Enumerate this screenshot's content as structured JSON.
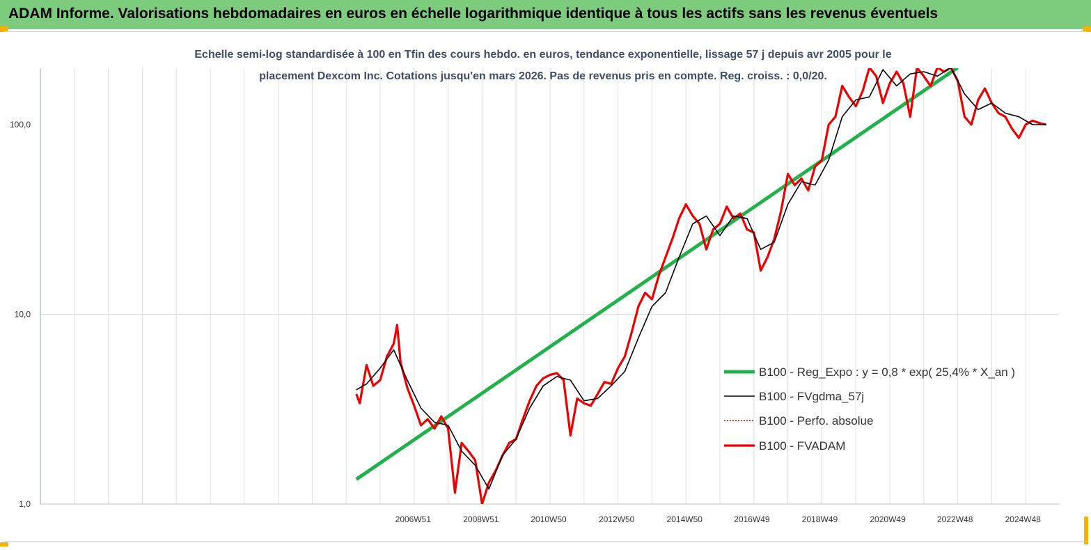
{
  "header": {
    "title": "ADAM Informe. Valorisations hebdomadaires en euros en échelle logarithmique identique à tous les actifs sans les revenus éventuels"
  },
  "colors": {
    "header_bg": "#7dcb7d",
    "accent_corner": "#f2b400",
    "series_regexpo": "#22b14c",
    "series_fvgdma": "#000000",
    "series_perfo": "#cc0000",
    "series_fvadam": "#ee0000"
  },
  "chart_data": {
    "type": "line",
    "title_line1": "Echelle semi-log standardisée à 100 en Tfin des cours hebdo. en euros, tendance exponentielle, lissage 57 j depuis avr 2005 pour le",
    "title_line2": "placement Dexcom Inc. Cotations jusqu'en mars 2026. Pas de revenus pris en compte. Reg. croiss. : 0,0/20.",
    "y_scale": "log",
    "ylim": [
      1,
      200
    ],
    "y_ticks": [
      {
        "value": 1,
        "label": "1,0"
      },
      {
        "value": 10,
        "label": "10,0"
      },
      {
        "value": 100,
        "label": "100,0"
      }
    ],
    "xlim": [
      1996.0,
      2026.0
    ],
    "x_ticks": [
      {
        "value": 2006.97,
        "label": "2006W51"
      },
      {
        "value": 2008.97,
        "label": "2008W51"
      },
      {
        "value": 2010.96,
        "label": "2010W50"
      },
      {
        "value": 2012.96,
        "label": "2012W50"
      },
      {
        "value": 2014.96,
        "label": "2014W50"
      },
      {
        "value": 2016.94,
        "label": "2016W49"
      },
      {
        "value": 2018.94,
        "label": "2018W49"
      },
      {
        "value": 2020.94,
        "label": "2020W49"
      },
      {
        "value": 2022.92,
        "label": "2022W48"
      },
      {
        "value": 2024.92,
        "label": "2024W48"
      }
    ],
    "grid": "vertical",
    "legend_position": "right",
    "series": [
      {
        "name": "B100 - Reg_Expo : y = 0,8 * exp( 25,4% *  X_an )",
        "style": "thick-green",
        "x": [
          2005.3,
          2023.0
        ],
        "y": [
          1.35,
          200
        ]
      },
      {
        "name": "B100 - FVgdma_57j",
        "style": "thin-black",
        "x": [
          2005.3,
          2005.6,
          2006.0,
          2006.4,
          2006.8,
          2007.2,
          2007.6,
          2008.0,
          2008.4,
          2008.8,
          2009.2,
          2009.6,
          2010.0,
          2010.4,
          2010.8,
          2011.2,
          2011.6,
          2012.0,
          2012.4,
          2012.8,
          2013.2,
          2013.6,
          2014.0,
          2014.4,
          2014.8,
          2015.2,
          2015.6,
          2016.0,
          2016.4,
          2016.8,
          2017.2,
          2017.6,
          2018.0,
          2018.4,
          2018.8,
          2019.2,
          2019.6,
          2020.0,
          2020.4,
          2020.8,
          2021.2,
          2021.6,
          2022.0,
          2022.4,
          2022.8,
          2023.2,
          2023.6,
          2024.0,
          2024.4,
          2024.8,
          2025.2,
          2025.6
        ],
        "y": [
          4.0,
          4.3,
          5.2,
          6.5,
          4.5,
          3.2,
          2.7,
          2.6,
          1.9,
          1.6,
          1.2,
          1.8,
          2.2,
          3.2,
          4.2,
          4.7,
          4.5,
          3.5,
          3.6,
          4.2,
          5.0,
          7.5,
          11.0,
          13.0,
          20.0,
          30.0,
          33.0,
          26.0,
          33.0,
          32.0,
          22.0,
          24.0,
          38.0,
          50.0,
          48.0,
          65.0,
          110.0,
          135.0,
          140.0,
          195.0,
          160.0,
          185.0,
          190.0,
          180.0,
          200.0,
          145.0,
          120.0,
          130.0,
          115.0,
          110.0,
          100.0,
          100.0
        ]
      },
      {
        "name": "B100 - Perfo. absolue",
        "style": "dotted-red",
        "x": [],
        "y": []
      },
      {
        "name": "B100 - FVADAM",
        "style": "thick-red",
        "x": [
          2005.3,
          2005.4,
          2005.6,
          2005.8,
          2006.0,
          2006.2,
          2006.4,
          2006.5,
          2006.6,
          2006.8,
          2007.0,
          2007.2,
          2007.4,
          2007.6,
          2007.8,
          2008.0,
          2008.2,
          2008.4,
          2008.6,
          2008.8,
          2009.0,
          2009.2,
          2009.4,
          2009.6,
          2009.8,
          2010.0,
          2010.2,
          2010.4,
          2010.6,
          2010.8,
          2011.0,
          2011.2,
          2011.4,
          2011.6,
          2011.8,
          2012.0,
          2012.2,
          2012.4,
          2012.6,
          2012.8,
          2013.0,
          2013.2,
          2013.4,
          2013.6,
          2013.8,
          2014.0,
          2014.2,
          2014.4,
          2014.6,
          2014.8,
          2015.0,
          2015.2,
          2015.4,
          2015.6,
          2015.8,
          2016.0,
          2016.2,
          2016.4,
          2016.6,
          2016.8,
          2017.0,
          2017.2,
          2017.4,
          2017.6,
          2017.8,
          2018.0,
          2018.2,
          2018.4,
          2018.6,
          2018.8,
          2019.0,
          2019.2,
          2019.4,
          2019.6,
          2019.8,
          2020.0,
          2020.2,
          2020.4,
          2020.6,
          2020.8,
          2021.0,
          2021.2,
          2021.4,
          2021.6,
          2021.8,
          2022.0,
          2022.2,
          2022.4,
          2022.6,
          2022.8,
          2023.0,
          2023.2,
          2023.4,
          2023.6,
          2023.8,
          2024.0,
          2024.2,
          2024.4,
          2024.6,
          2024.8,
          2025.0,
          2025.2,
          2025.4,
          2025.6
        ],
        "y": [
          3.8,
          3.4,
          5.4,
          4.2,
          4.5,
          6.0,
          7.0,
          8.8,
          5.6,
          4.1,
          3.3,
          2.6,
          2.8,
          2.5,
          2.9,
          2.5,
          1.15,
          2.1,
          1.9,
          1.7,
          1.0,
          1.3,
          1.5,
          1.8,
          2.1,
          2.2,
          2.8,
          3.5,
          4.2,
          4.6,
          4.8,
          4.9,
          4.5,
          2.3,
          3.6,
          3.4,
          3.3,
          3.8,
          4.4,
          4.3,
          5.2,
          6.0,
          8.0,
          11.0,
          13.0,
          12.0,
          16.0,
          20.0,
          25.0,
          32.0,
          38.0,
          33.0,
          30.0,
          22.0,
          28.0,
          30.0,
          37.0,
          32.0,
          34.0,
          28.0,
          27.0,
          17.0,
          20.0,
          25.0,
          35.0,
          55.0,
          48.0,
          52.0,
          45.0,
          60.0,
          65.0,
          100.0,
          110.0,
          160.0,
          140.0,
          125.0,
          150.0,
          200.0,
          180.0,
          130.0,
          165.0,
          190.0,
          165.0,
          110.0,
          200.0,
          180.0,
          160.0,
          200.0,
          190.0,
          200.0,
          170.0,
          110.0,
          100.0,
          135.0,
          155.0,
          130.0,
          115.0,
          110.0,
          95.0,
          85.0,
          100.0,
          105.0,
          102.0,
          100.0
        ]
      }
    ]
  }
}
